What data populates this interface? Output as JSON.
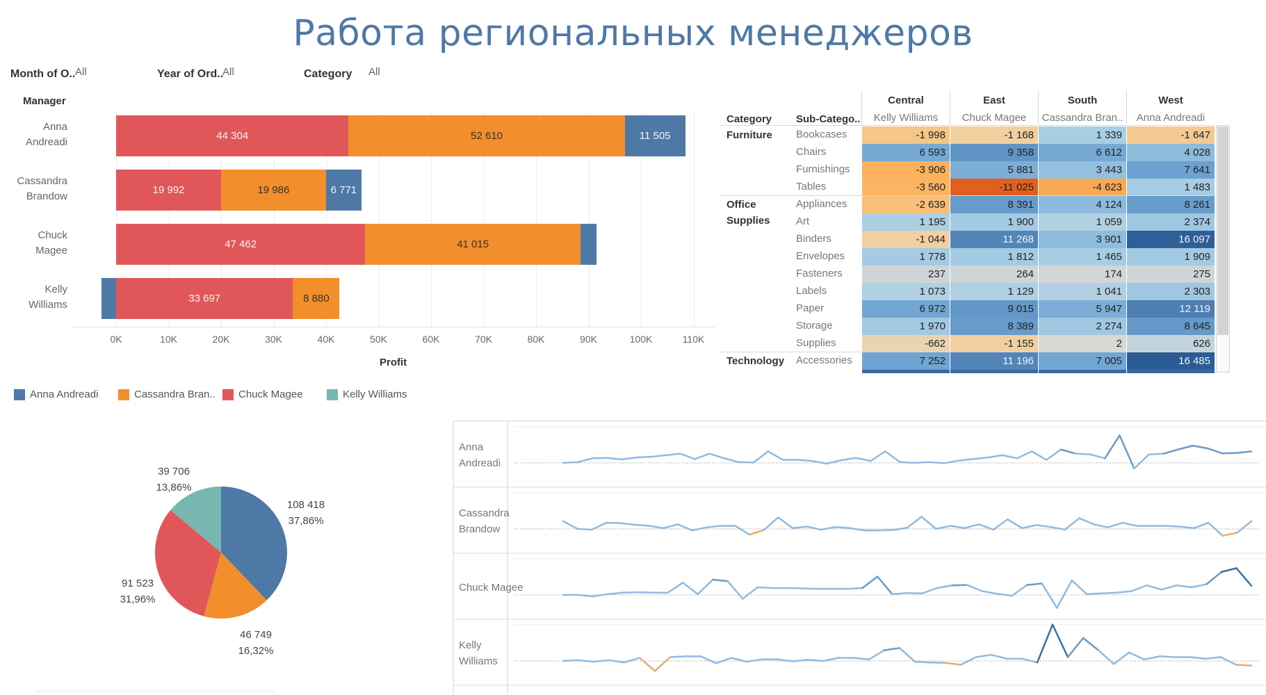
{
  "title": "Работа региональных менеджеров",
  "filters": [
    {
      "label": "Month of O..",
      "value": "All"
    },
    {
      "label": "Year of Ord..",
      "value": "All"
    },
    {
      "label": "Category",
      "value": "All"
    }
  ],
  "colors": {
    "anna": "#4e79a7",
    "cassandra": "#f28e2b",
    "chuck": "#e15759",
    "kelly": "#76b7b2",
    "title": "#4e79a7"
  },
  "bar_chart": {
    "row_header": "Manager",
    "x_title": "Profit",
    "managers": [
      {
        "line1": "Anna",
        "line2": "Andreadi"
      },
      {
        "line1": "Cassandra",
        "line2": "Brandow"
      },
      {
        "line1": "Chuck",
        "line2": "Magee"
      },
      {
        "line1": "Kelly",
        "line2": "Williams"
      }
    ],
    "ticks": [
      "0K",
      "10K",
      "20K",
      "30K",
      "40K",
      "50K",
      "60K",
      "70K",
      "80K",
      "90K",
      "100K",
      "110K"
    ]
  },
  "chart_data": [
    {
      "type": "bar",
      "orientation": "horizontal",
      "stacked": true,
      "categories": [
        "Anna Andreadi",
        "Cassandra Brandow",
        "Chuck Magee",
        "Kelly Williams"
      ],
      "xlabel": "Profit",
      "xlim": [
        -5000,
        113000
      ],
      "series": [
        {
          "name": "Chuck Magee",
          "color": "#e15759",
          "values": [
            44304,
            19992,
            47462,
            33697
          ],
          "labels": [
            "44 304",
            "19 992",
            "47 462",
            "33 697"
          ]
        },
        {
          "name": "Cassandra Bran..",
          "color": "#f28e2b",
          "values": [
            52610,
            19986,
            41015,
            8880
          ],
          "labels": [
            "52 610",
            "19 986",
            "41 015",
            "8 880"
          ]
        },
        {
          "name": "Anna Andreadi",
          "color": "#4e79a7",
          "values": [
            11505,
            6771,
            3000,
            -2800
          ],
          "labels": [
            "11 505",
            "6 771",
            "",
            ""
          ]
        }
      ]
    },
    {
      "type": "pie",
      "slices": [
        {
          "name": "Anna Andreadi",
          "value": 108418,
          "label": "108 418",
          "pct": "37,86%",
          "color": "#4e79a7"
        },
        {
          "name": "Cassandra Brandow",
          "value": 46749,
          "label": "46 749",
          "pct": "16,32%",
          "color": "#f28e2b"
        },
        {
          "name": "Chuck Magee",
          "value": 91523,
          "label": "91 523",
          "pct": "31,96%",
          "color": "#e15759"
        },
        {
          "name": "Kelly Williams",
          "value": 39706,
          "label": "39 706",
          "pct": "13,86%",
          "color": "#76b7b2"
        }
      ]
    },
    {
      "type": "line",
      "panels": [
        {
          "label": "Anna Andreadi",
          "values": [
            0,
            0.02,
            0.12,
            0.13,
            0.09,
            0.14,
            0.16,
            0.2,
            0.24,
            0.1,
            0.24,
            0.12,
            0.02,
            0.01,
            0.3,
            0.08,
            0.08,
            0.05,
            -0.02,
            0.07,
            0.13,
            0.05,
            0.3,
            0.02,
            0,
            0.02,
            -0.01,
            0.06,
            0.1,
            0.14,
            0.2,
            0.12,
            0.3,
            0.08,
            0.35,
            0.24,
            0.22,
            0.12,
            0.72,
            -0.15,
            0.22,
            0.24,
            0.35,
            0.45,
            0.38,
            0.25,
            0.26,
            0.3
          ]
        },
        {
          "label": "Cassandra Brandow",
          "values": [
            0.2,
            0,
            -0.02,
            0.16,
            0.15,
            0.11,
            0.08,
            0.02,
            0.12,
            -0.04,
            0.04,
            0.08,
            0.08,
            -0.15,
            -0.03,
            0.3,
            0.02,
            0.06,
            -0.02,
            0.05,
            0.02,
            -0.04,
            -0.04,
            -0.03,
            0.03,
            0.32,
            0,
            0.08,
            0.02,
            0.12,
            -0.02,
            0.25,
            0.02,
            0.1,
            0.05,
            -0.02,
            0.28,
            0.12,
            0.04,
            0.16,
            0.08,
            0.08,
            0.08,
            0.06,
            0.02,
            0.16,
            -0.18,
            -0.1,
            0.2
          ]
        },
        {
          "label": "Chuck Magee",
          "values": [
            0,
            0,
            -0.04,
            0.02,
            0.06,
            0.07,
            0.06,
            0.06,
            0.32,
            0.02,
            0.4,
            0.36,
            -0.1,
            0.2,
            0.18,
            0.18,
            0.17,
            0.16,
            0.16,
            0.16,
            0.18,
            0.48,
            0.02,
            0.05,
            0.04,
            0.18,
            0.25,
            0.26,
            0.1,
            0.03,
            -0.02,
            0.26,
            0.3,
            -0.34,
            0.38,
            0.02,
            0.04,
            0.06,
            0.1,
            0.25,
            0.14,
            0.25,
            0.2,
            0.28,
            0.6,
            0.7,
            0.24
          ]
        },
        {
          "label": "Kelly Williams",
          "values": [
            0,
            0.02,
            -0.02,
            0.02,
            -0.04,
            0.08,
            -0.26,
            0.1,
            0.12,
            0.12,
            -0.06,
            0.08,
            -0.02,
            0.04,
            0.04,
            -0.01,
            0.03,
            0,
            0.08,
            0.08,
            0.04,
            0.28,
            0.34,
            -0.02,
            -0.04,
            -0.05,
            -0.1,
            0.1,
            0.16,
            0.06,
            0.06,
            -0.04,
            0.95,
            0.1,
            0.6,
            0.28,
            -0.08,
            0.22,
            0.04,
            0.12,
            0.1,
            0.1,
            0.06,
            0.1,
            -0.1,
            -0.12
          ]
        }
      ]
    }
  ],
  "table": {
    "header_category": "Category",
    "header_subcategory": "Sub-Catego..",
    "regions": [
      {
        "name": "Central",
        "manager": "Kelly Williams"
      },
      {
        "name": "East",
        "manager": "Chuck Magee"
      },
      {
        "name": "South",
        "manager": "Cassandra Bran.."
      },
      {
        "name": "West",
        "manager": "Anna Andreadi"
      }
    ],
    "groups": [
      {
        "line1": "Furniture",
        "line2": ""
      },
      {
        "line1": "Office",
        "line2": "Supplies"
      },
      {
        "line1": "Technology",
        "line2": ""
      }
    ],
    "rows": [
      {
        "group": 0,
        "sub": "Bookcases",
        "labels": [
          "-1 998",
          "-1 168",
          "1 339",
          "-1 647"
        ],
        "values": [
          -1998,
          -1168,
          1339,
          -1647
        ]
      },
      {
        "group": 0,
        "sub": "Chairs",
        "labels": [
          "6 593",
          "9 358",
          "6 612",
          "4 028"
        ],
        "values": [
          6593,
          9358,
          6612,
          4028
        ]
      },
      {
        "group": 0,
        "sub": "Furnishings",
        "labels": [
          "-3 906",
          "5 881",
          "3 443",
          "7 641"
        ],
        "values": [
          -3906,
          5881,
          3443,
          7641
        ]
      },
      {
        "group": 0,
        "sub": "Tables",
        "labels": [
          "-3 560",
          "-11 025",
          "-4 623",
          "1 483"
        ],
        "values": [
          -3560,
          -11025,
          -4623,
          1483
        ]
      },
      {
        "group": 1,
        "sub": "Appliances",
        "labels": [
          "-2 639",
          "8 391",
          "4 124",
          "8 261"
        ],
        "values": [
          -2639,
          8391,
          4124,
          8261
        ]
      },
      {
        "group": 1,
        "sub": "Art",
        "labels": [
          "1 195",
          "1 900",
          "1 059",
          "2 374"
        ],
        "values": [
          1195,
          1900,
          1059,
          2374
        ]
      },
      {
        "group": 1,
        "sub": "Binders",
        "labels": [
          "-1 044",
          "11 268",
          "3 901",
          "16 097"
        ],
        "values": [
          -1044,
          11268,
          3901,
          16097
        ]
      },
      {
        "group": 1,
        "sub": "Envelopes",
        "labels": [
          "1 778",
          "1 812",
          "1 465",
          "1 909"
        ],
        "values": [
          1778,
          1812,
          1465,
          1909
        ]
      },
      {
        "group": 1,
        "sub": "Fasteners",
        "labels": [
          "237",
          "264",
          "174",
          "275"
        ],
        "values": [
          237,
          264,
          174,
          275
        ]
      },
      {
        "group": 1,
        "sub": "Labels",
        "labels": [
          "1 073",
          "1 129",
          "1 041",
          "2 303"
        ],
        "values": [
          1073,
          1129,
          1041,
          2303
        ]
      },
      {
        "group": 1,
        "sub": "Paper",
        "labels": [
          "6 972",
          "9 015",
          "5 947",
          "12 119"
        ],
        "values": [
          6972,
          9015,
          5947,
          12119
        ]
      },
      {
        "group": 1,
        "sub": "Storage",
        "labels": [
          "1 970",
          "8 389",
          "2 274",
          "8 645"
        ],
        "values": [
          1970,
          8389,
          2274,
          8645
        ]
      },
      {
        "group": 1,
        "sub": "Supplies",
        "labels": [
          "-662",
          "-1 155",
          "2",
          "626"
        ],
        "values": [
          -662,
          -1155,
          2,
          626
        ]
      },
      {
        "group": 2,
        "sub": "Accessories",
        "labels": [
          "7 252",
          "11 196",
          "7 005",
          "16 485"
        ],
        "values": [
          7252,
          11196,
          7005,
          16485
        ]
      }
    ]
  },
  "legend": [
    {
      "label": "Anna Andreadi",
      "color": "#4e79a7"
    },
    {
      "label": "Cassandra Bran..",
      "color": "#f28e2b"
    },
    {
      "label": "Chuck Magee",
      "color": "#e15759"
    },
    {
      "label": "Kelly Williams",
      "color": "#76b7b2"
    }
  ],
  "sparklines": {
    "labels": [
      {
        "line1": "Anna",
        "line2": "Andreadi"
      },
      {
        "line1": "Cassandra",
        "line2": "Brandow"
      },
      {
        "line1": "Chuck Magee",
        "line2": ""
      },
      {
        "line1": "Kelly",
        "line2": "Williams"
      }
    ]
  }
}
